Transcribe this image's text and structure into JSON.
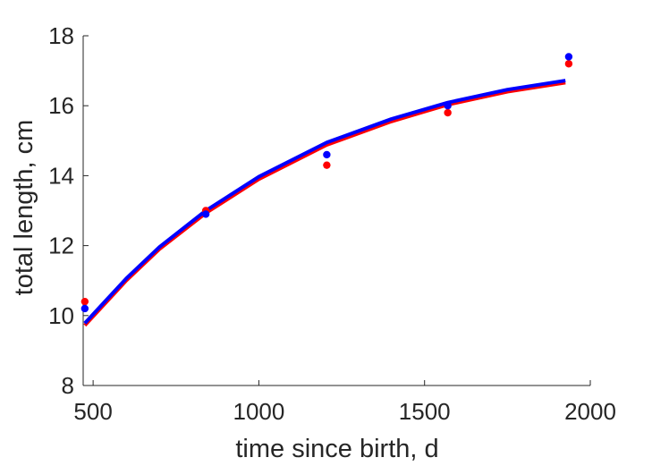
{
  "chart_data": {
    "type": "scatter",
    "title": "",
    "xlabel": "time since birth, d",
    "ylabel": "total length, cm",
    "xlim": [
      470,
      2000
    ],
    "ylim": [
      8,
      18
    ],
    "xticks": [
      500,
      1000,
      1500,
      2000
    ],
    "yticks": [
      8,
      10,
      12,
      14,
      16,
      18
    ],
    "xtick_labels": [
      "500",
      "1000",
      "1500",
      "2000"
    ],
    "ytick_labels": [
      "8",
      "10",
      "12",
      "14",
      "16",
      "18"
    ],
    "grid": false,
    "series": [
      {
        "kind": "points",
        "color": "#ff0000",
        "x": [
          475,
          840,
          1205,
          1570,
          1935
        ],
        "y": [
          10.4,
          13.0,
          14.3,
          15.8,
          17.2
        ]
      },
      {
        "kind": "points",
        "color": "#0000ff",
        "x": [
          475,
          840,
          1205,
          1570,
          1935
        ],
        "y": [
          10.2,
          12.9,
          14.6,
          16.0,
          17.4
        ]
      },
      {
        "kind": "line",
        "color": "#ff0000",
        "x": [
          475,
          600,
          700,
          840,
          1000,
          1205,
          1400,
          1570,
          1750,
          1925
        ],
        "y": [
          9.72,
          11.0,
          11.9,
          12.93,
          13.9,
          14.88,
          15.55,
          16.03,
          16.4,
          16.66
        ]
      },
      {
        "kind": "line",
        "color": "#0000ff",
        "x": [
          475,
          600,
          700,
          840,
          1000,
          1205,
          1400,
          1570,
          1750,
          1925
        ],
        "y": [
          9.78,
          11.06,
          11.96,
          13.0,
          13.97,
          14.95,
          15.62,
          16.09,
          16.46,
          16.72
        ]
      }
    ]
  }
}
